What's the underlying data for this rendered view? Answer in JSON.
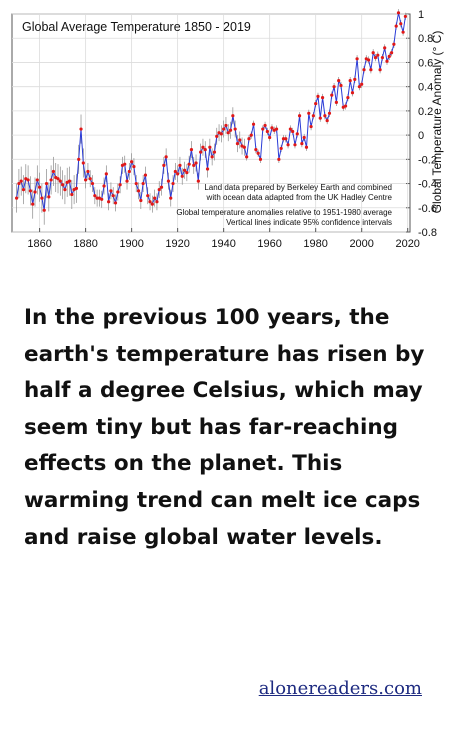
{
  "chart_data": {
    "type": "line",
    "title": "Global Average Temperature 1850 - 2019",
    "ylabel": "Global Temperature Anomaly (° C)",
    "xlabel": "",
    "xlim": [
      1848,
      2021
    ],
    "ylim": [
      -0.8,
      1.0
    ],
    "x_ticks": [
      "1860",
      "1880",
      "1900",
      "1920",
      "1940",
      "1960",
      "1980",
      "2000",
      "2020"
    ],
    "y_ticks": [
      "1",
      "0.8",
      "0.6",
      "0.4",
      "0.2",
      "0",
      "-0.2",
      "-0.4",
      "-0.6",
      "-0.8"
    ],
    "grid": true,
    "annotations": [
      "Land data prepared by Berkeley Earth and combined",
      "with ocean data adapted from the UK Hadley Centre",
      "Global temperature anomalies relative to 1951-1980 average",
      "Vertical lines indicate 95% confidence intervals"
    ],
    "series": [
      {
        "color": "#2a3bd6",
        "marker_color": "#e01818",
        "x": [
          1850,
          1851,
          1852,
          1853,
          1854,
          1855,
          1856,
          1857,
          1858,
          1859,
          1860,
          1861,
          1862,
          1863,
          1864,
          1865,
          1866,
          1867,
          1868,
          1869,
          1870,
          1871,
          1872,
          1873,
          1874,
          1875,
          1876,
          1877,
          1878,
          1879,
          1880,
          1881,
          1882,
          1883,
          1884,
          1885,
          1886,
          1887,
          1888,
          1889,
          1890,
          1891,
          1892,
          1893,
          1894,
          1895,
          1896,
          1897,
          1898,
          1899,
          1900,
          1901,
          1902,
          1903,
          1904,
          1905,
          1906,
          1907,
          1908,
          1909,
          1910,
          1911,
          1912,
          1913,
          1914,
          1915,
          1916,
          1917,
          1918,
          1919,
          1920,
          1921,
          1922,
          1923,
          1924,
          1925,
          1926,
          1927,
          1928,
          1929,
          1930,
          1931,
          1932,
          1933,
          1934,
          1935,
          1936,
          1937,
          1938,
          1939,
          1940,
          1941,
          1942,
          1943,
          1944,
          1945,
          1946,
          1947,
          1948,
          1949,
          1950,
          1951,
          1952,
          1953,
          1954,
          1955,
          1956,
          1957,
          1958,
          1959,
          1960,
          1961,
          1962,
          1963,
          1964,
          1965,
          1966,
          1967,
          1968,
          1969,
          1970,
          1971,
          1972,
          1973,
          1974,
          1975,
          1976,
          1977,
          1978,
          1979,
          1980,
          1981,
          1982,
          1983,
          1984,
          1985,
          1986,
          1987,
          1988,
          1989,
          1990,
          1991,
          1992,
          1993,
          1994,
          1995,
          1996,
          1997,
          1998,
          1999,
          2000,
          2001,
          2002,
          2003,
          2004,
          2005,
          2006,
          2007,
          2008,
          2009,
          2010,
          2011,
          2012,
          2013,
          2014,
          2015,
          2016,
          2017,
          2018,
          2019
        ],
        "y": [
          -0.52,
          -0.4,
          -0.38,
          -0.45,
          -0.36,
          -0.37,
          -0.46,
          -0.57,
          -0.47,
          -0.37,
          -0.43,
          -0.52,
          -0.62,
          -0.4,
          -0.51,
          -0.37,
          -0.3,
          -0.35,
          -0.36,
          -0.38,
          -0.41,
          -0.45,
          -0.39,
          -0.38,
          -0.49,
          -0.45,
          -0.44,
          -0.2,
          0.05,
          -0.23,
          -0.37,
          -0.3,
          -0.36,
          -0.4,
          -0.5,
          -0.52,
          -0.52,
          -0.53,
          -0.42,
          -0.32,
          -0.55,
          -0.46,
          -0.5,
          -0.56,
          -0.47,
          -0.41,
          -0.25,
          -0.24,
          -0.38,
          -0.3,
          -0.22,
          -0.26,
          -0.4,
          -0.46,
          -0.54,
          -0.4,
          -0.33,
          -0.5,
          -0.55,
          -0.57,
          -0.52,
          -0.55,
          -0.45,
          -0.43,
          -0.25,
          -0.18,
          -0.38,
          -0.52,
          -0.4,
          -0.3,
          -0.32,
          -0.25,
          -0.34,
          -0.29,
          -0.31,
          -0.24,
          -0.12,
          -0.25,
          -0.23,
          -0.38,
          -0.14,
          -0.1,
          -0.12,
          -0.28,
          -0.1,
          -0.18,
          -0.14,
          -0.01,
          0.02,
          0.01,
          0.05,
          0.08,
          0.02,
          0.04,
          0.16,
          0.05,
          -0.07,
          -0.04,
          -0.09,
          -0.1,
          -0.18,
          -0.03,
          0.0,
          0.09,
          -0.12,
          -0.15,
          -0.2,
          0.05,
          0.08,
          0.03,
          -0.02,
          0.06,
          0.04,
          0.05,
          -0.2,
          -0.11,
          -0.03,
          -0.03,
          -0.08,
          0.05,
          0.03,
          -0.08,
          0.01,
          0.16,
          -0.07,
          -0.02,
          -0.1,
          0.18,
          0.07,
          0.16,
          0.26,
          0.32,
          0.14,
          0.31,
          0.16,
          0.12,
          0.18,
          0.33,
          0.4,
          0.27,
          0.45,
          0.41,
          0.23,
          0.24,
          0.31,
          0.45,
          0.35,
          0.46,
          0.63,
          0.4,
          0.42,
          0.54,
          0.63,
          0.62,
          0.54,
          0.68,
          0.64,
          0.66,
          0.54,
          0.64,
          0.72,
          0.61,
          0.65,
          0.68,
          0.75,
          0.9,
          1.01,
          0.92,
          0.85,
          0.98
        ]
      }
    ]
  },
  "article": {
    "text": "In the previous 100 years, the earth's temperature has risen by half a degree Celsius, which may seem tiny but has far-reaching effects on the planet. This warming trend can melt ice caps and raise global water levels."
  },
  "footer": {
    "site_link": "alonereaders.com"
  }
}
